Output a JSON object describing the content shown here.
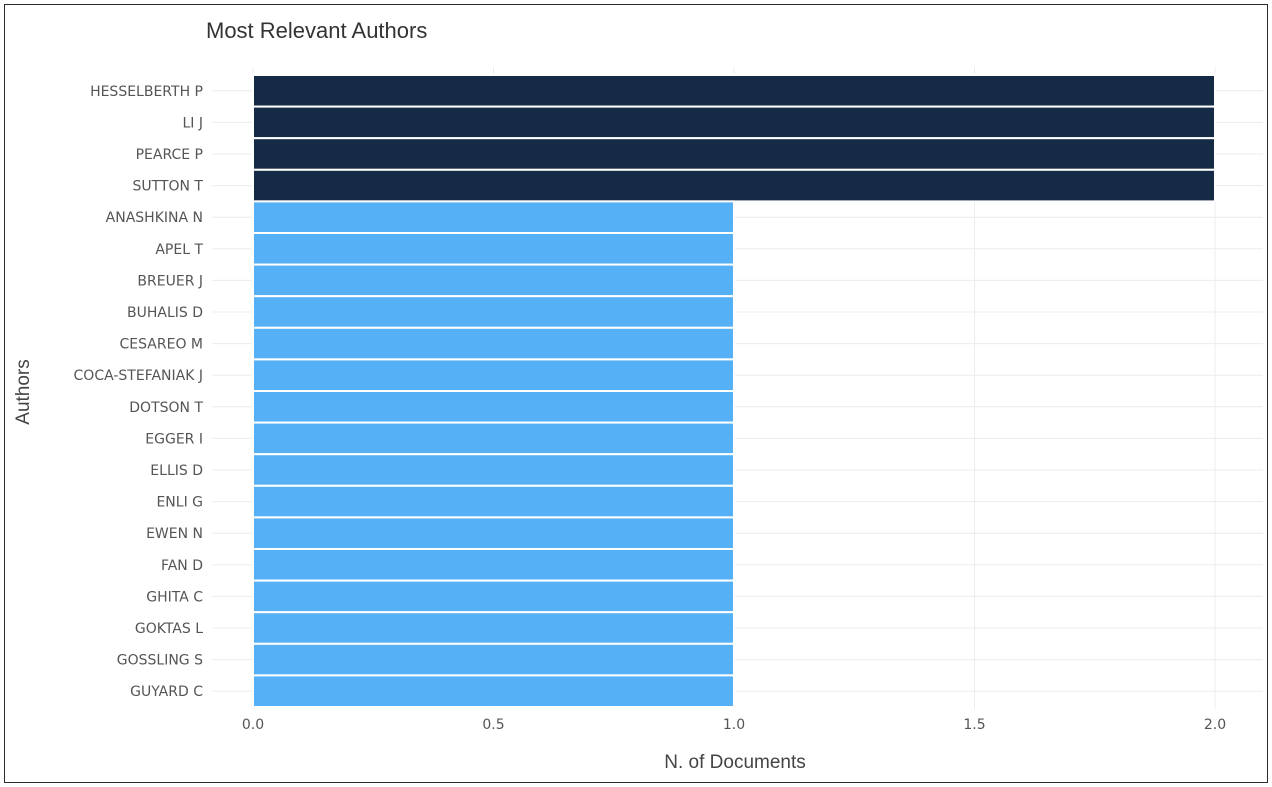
{
  "chart_data": {
    "type": "bar",
    "orientation": "horizontal",
    "title": "Most Relevant Authors",
    "xlabel": "N. of Documents",
    "ylabel": "Authors",
    "xlim": [
      0,
      2.0
    ],
    "xticks": [
      "0.0",
      "0.5",
      "1.0",
      "1.5",
      "2.0"
    ],
    "xtick_values": [
      0,
      0.5,
      1.0,
      1.5,
      2.0
    ],
    "grid": true,
    "legend": "none",
    "categories": [
      "HESSELBERTH P",
      "LI J",
      "PEARCE P",
      "SUTTON T",
      "ANASHKINA N",
      "APEL T",
      "BREUER J",
      "BUHALIS D",
      "CESAREO M",
      "COCA-STEFANIAK J",
      "DOTSON T",
      "EGGER I",
      "ELLIS D",
      "ENLI G",
      "EWEN N",
      "FAN D",
      "GHITA C",
      "GOKTAS L",
      "GOSSLING S",
      "GUYARD C"
    ],
    "values": [
      2,
      2,
      2,
      2,
      1,
      1,
      1,
      1,
      1,
      1,
      1,
      1,
      1,
      1,
      1,
      1,
      1,
      1,
      1,
      1
    ],
    "colors": {
      "high": "#152a44",
      "low": "#56b0f6",
      "grid": "#ececec",
      "bar_outline": "#ffffff"
    }
  }
}
